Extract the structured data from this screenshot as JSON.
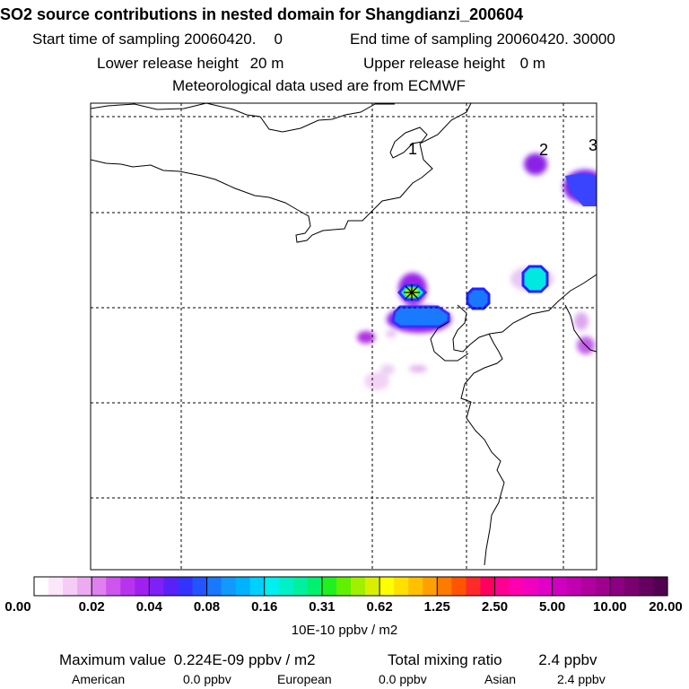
{
  "header": {
    "title": "SO2 source contributions in nested domain for Shangdianzi_200604",
    "start_label": "Start time of sampling 20060420.",
    "start_hour": "0",
    "end_label": "End time of sampling 20060420. 30000",
    "lower_label": "Lower release height",
    "lower_value": "20 m",
    "upper_label": "Upper release height",
    "upper_value": "0 m",
    "met_label": "Meteorological data used are from ECMWF"
  },
  "map": {
    "region_labels": [
      "1",
      "2",
      "3"
    ],
    "receptor_marker": "receptor-star"
  },
  "colorbar": {
    "tick_labels": [
      "0.00",
      "0.02",
      "0.04",
      "0.08",
      "0.16",
      "0.31",
      "0.62",
      "1.25",
      "2.50",
      "5.00",
      "10.00",
      "20.00"
    ],
    "units": "10E-10 ppbv / m2",
    "colors": [
      "#ffffff",
      "#fbe6fb",
      "#f5ccf5",
      "#ecaaf0",
      "#e080f0",
      "#cc55ee",
      "#b833ee",
      "#a020f0",
      "#7f20f5",
      "#5a20f8",
      "#3333ff",
      "#2255ff",
      "#1a78ff",
      "#1199ff",
      "#00b2ff",
      "#00d0ff",
      "#00f0f0",
      "#00f0c8",
      "#00f0a0",
      "#00f070",
      "#20f020",
      "#60f000",
      "#a0f000",
      "#d8f000",
      "#ffff00",
      "#ffe000",
      "#ffc000",
      "#ffa000",
      "#ff7a00",
      "#ff5500",
      "#ff2a2a",
      "#ff0060",
      "#ff0090",
      "#ff00b0",
      "#f000c0",
      "#e000c8",
      "#d000c0",
      "#c000b0",
      "#b000a0",
      "#a00090",
      "#8c0080",
      "#7a0070",
      "#660060",
      "#520050"
    ]
  },
  "footer": {
    "max_label": "Maximum value",
    "max_value": "0.224E-09 ppbv / m2",
    "total_label": "Total mixing ratio",
    "total_value": "2.4 ppbv",
    "american_label": "American",
    "american_value": "0.0 ppbv",
    "european_label": "European",
    "european_value": "0.0 ppbv",
    "asian_label": "Asian",
    "asian_value": "2.4 ppbv"
  }
}
